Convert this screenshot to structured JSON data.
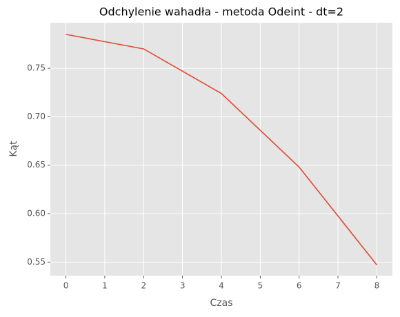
{
  "chart_data": {
    "type": "line",
    "title": "Odchylenie wahadła - metoda Odeint - dt=2",
    "xlabel": "Czas",
    "ylabel": "Kąt",
    "x": [
      0,
      2,
      4,
      6,
      8
    ],
    "series": [
      {
        "name": "Odeint",
        "color": "#e24a33",
        "values": [
          0.785,
          0.77,
          0.724,
          0.648,
          0.547
        ]
      }
    ],
    "xlim": [
      -0.4,
      8.4
    ],
    "xticks": [
      0,
      1,
      2,
      3,
      4,
      5,
      6,
      7,
      8
    ],
    "ylim": [
      0.536,
      0.797
    ],
    "yticks": [
      0.55,
      {
        "value": 0.6,
        "label": "0.60"
      },
      0.65,
      {
        "value": 0.7,
        "label": "0.70"
      },
      0.75
    ],
    "grid": true
  }
}
